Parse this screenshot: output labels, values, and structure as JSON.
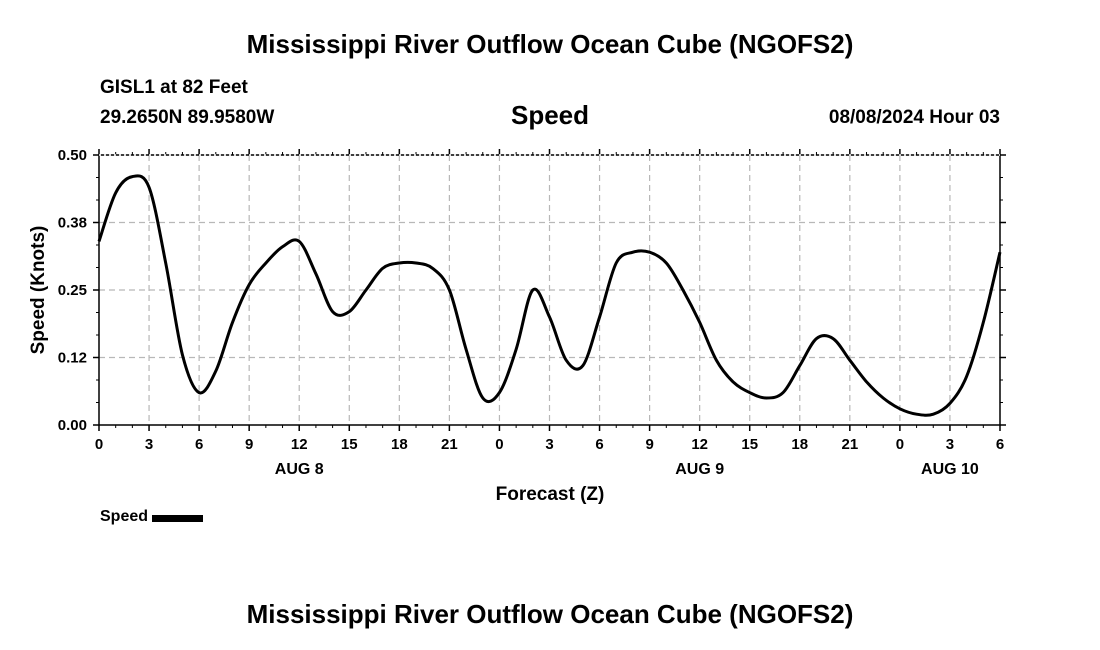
{
  "header": {
    "title": "Mississippi River Outflow Ocean Cube (NGOFS2)",
    "station": "GISL1 at 82 Feet",
    "coordinates": "29.2650N  89.9580W",
    "subtitle": "Speed",
    "timestamp": "08/08/2024 Hour 03"
  },
  "footer": {
    "title": "Mississippi River Outflow Ocean Cube (NGOFS2)"
  },
  "chart_data": {
    "type": "line",
    "title": "Speed",
    "xlabel": "Forecast (Z)",
    "ylabel": "Speed (Knots)",
    "ylim": [
      0,
      0.5
    ],
    "xlim": [
      0,
      54
    ],
    "y_ticks": [
      "0.00",
      "0.12",
      "0.25",
      "0.38",
      "0.50"
    ],
    "x_tick_labels": [
      "0",
      "3",
      "6",
      "9",
      "12",
      "15",
      "18",
      "21",
      "0",
      "3",
      "6",
      "9",
      "12",
      "15",
      "18",
      "21",
      "0",
      "3",
      "6"
    ],
    "date_labels": [
      {
        "x": 12,
        "label": "AUG 8"
      },
      {
        "x": 36,
        "label": "AUG 9"
      },
      {
        "x": 51,
        "label": "AUG 10"
      }
    ],
    "grid": true,
    "legend": "bottom-left",
    "line_color": "#000000",
    "series": [
      {
        "name": "Speed",
        "x": [
          0,
          1,
          2,
          3,
          4,
          5,
          6,
          7,
          8,
          9,
          10,
          11,
          12,
          13,
          14,
          15,
          16,
          17,
          18,
          19,
          20,
          21,
          22,
          23,
          24,
          25,
          26,
          27,
          28,
          29,
          30,
          31,
          32,
          33,
          34,
          35,
          36,
          37,
          38,
          39,
          40,
          41,
          42,
          43,
          44,
          45,
          46,
          47,
          48,
          49,
          50,
          51,
          52,
          53,
          54
        ],
        "values": [
          0.34,
          0.43,
          0.46,
          0.44,
          0.3,
          0.13,
          0.06,
          0.1,
          0.19,
          0.26,
          0.3,
          0.33,
          0.34,
          0.28,
          0.21,
          0.21,
          0.25,
          0.29,
          0.3,
          0.3,
          0.29,
          0.25,
          0.14,
          0.05,
          0.06,
          0.14,
          0.25,
          0.2,
          0.12,
          0.11,
          0.2,
          0.3,
          0.32,
          0.32,
          0.3,
          0.25,
          0.19,
          0.12,
          0.08,
          0.06,
          0.05,
          0.06,
          0.11,
          0.16,
          0.16,
          0.12,
          0.08,
          0.05,
          0.03,
          0.02,
          0.02,
          0.04,
          0.09,
          0.19,
          0.32
        ]
      }
    ]
  }
}
